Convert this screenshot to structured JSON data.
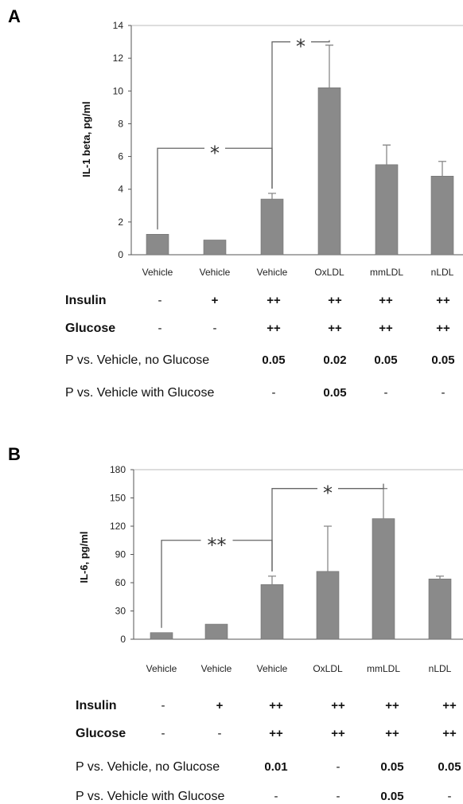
{
  "chart_data": [
    {
      "panel": "A",
      "type": "bar",
      "ylabel": "IL-1 beta, pg/ml",
      "ylim": [
        0,
        14
      ],
      "yticks": [
        0,
        2,
        4,
        6,
        8,
        10,
        12,
        14
      ],
      "categories": [
        "Vehicle",
        "Vehicle",
        "Vehicle",
        "OxLDL",
        "mmLDL",
        "nLDL"
      ],
      "values": [
        1.25,
        0.9,
        3.4,
        10.2,
        5.5,
        4.8
      ],
      "error": [
        0,
        0,
        0.35,
        2.6,
        1.2,
        0.9
      ],
      "significance": [
        {
          "from": 0,
          "to": 2,
          "label": "*",
          "level": 6.5
        },
        {
          "from": 2,
          "to": 3,
          "label": "*",
          "level": 13.0
        }
      ],
      "rows": [
        {
          "label": "Insulin",
          "bold_label": true,
          "bold_values": true,
          "values": [
            "-",
            "+",
            "++",
            "++",
            "++",
            "++"
          ]
        },
        {
          "label": "Glucose",
          "bold_label": true,
          "bold_values": true,
          "values": [
            "-",
            "-",
            "++",
            "++",
            "++",
            "++"
          ]
        },
        {
          "label": "P vs. Vehicle, no Glucose",
          "bold_label": false,
          "bold_values": true,
          "values": [
            "",
            "",
            "0.05",
            "0.02",
            "0.05",
            "0.05"
          ]
        },
        {
          "label": "P vs. Vehicle with Glucose",
          "bold_label": false,
          "bold_values": true,
          "values": [
            "",
            "",
            "-",
            "0.05",
            "-",
            "-"
          ]
        }
      ]
    },
    {
      "panel": "B",
      "type": "bar",
      "ylabel": "IL-6, pg/ml",
      "ylim": [
        0,
        180
      ],
      "yticks": [
        0,
        30,
        60,
        90,
        120,
        150,
        180
      ],
      "categories": [
        "Vehicle",
        "Vehicle",
        "Vehicle",
        "OxLDL",
        "mmLDL",
        "nLDL"
      ],
      "values": [
        7,
        16,
        58,
        72,
        128,
        64
      ],
      "error": [
        0,
        0,
        9,
        48,
        32,
        3
      ],
      "significance": [
        {
          "from": 0,
          "to": 2,
          "label": "**",
          "level": 105
        },
        {
          "from": 2,
          "to": 4,
          "label": "*",
          "level": 160
        }
      ],
      "rows": [
        {
          "label": "Insulin",
          "bold_label": true,
          "bold_values": true,
          "values": [
            "-",
            "+",
            "++",
            "++",
            "++",
            "++"
          ]
        },
        {
          "label": "Glucose",
          "bold_label": true,
          "bold_values": true,
          "values": [
            "-",
            "-",
            "++",
            "++",
            "++",
            "++"
          ]
        },
        {
          "label": "P vs. Vehicle, no Glucose",
          "bold_label": false,
          "bold_values": true,
          "values": [
            "",
            "",
            "0.01",
            "-",
            "0.05",
            "0.05"
          ]
        },
        {
          "label": "P vs. Vehicle with Glucose",
          "bold_label": false,
          "bold_values": true,
          "values": [
            "",
            "",
            "-",
            "-",
            "0.05",
            "-"
          ]
        }
      ]
    }
  ]
}
